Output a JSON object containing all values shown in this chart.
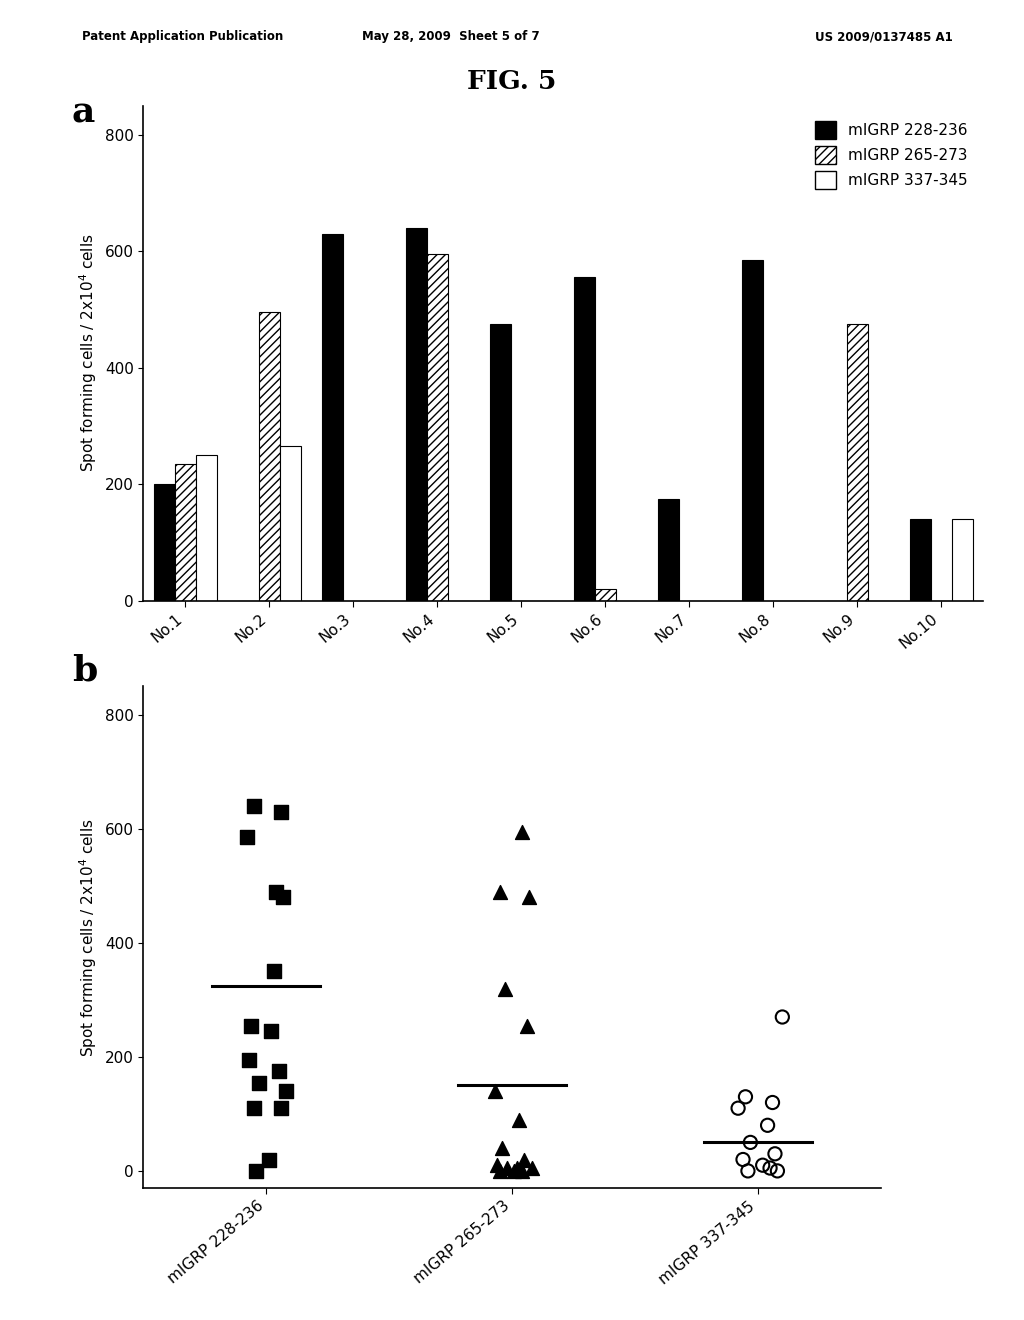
{
  "fig_title": "FIG. 5",
  "patent_header_left": "Patent Application Publication",
  "patent_header_mid": "May 28, 2009  Sheet 5 of 7",
  "patent_header_right": "US 2009/0137485 A1",
  "bar_categories": [
    "No.1",
    "No.2",
    "No.3",
    "No.4",
    "No.5",
    "No.6",
    "No.7",
    "No.8",
    "No.9",
    "No.10"
  ],
  "bar_series": {
    "mIGRP 228-236": [
      200,
      0,
      630,
      640,
      475,
      555,
      175,
      585,
      0,
      140
    ],
    "mIGRP 265-273": [
      235,
      495,
      0,
      595,
      0,
      20,
      0,
      0,
      475,
      0
    ],
    "mIGRP 337-345": [
      250,
      265,
      0,
      0,
      0,
      0,
      0,
      0,
      0,
      140
    ]
  },
  "bar_ylabel": "Spot forming cells / 2x10$^4$ cells",
  "bar_ylim": [
    0,
    850
  ],
  "bar_yticks": [
    0,
    200,
    400,
    600,
    800
  ],
  "bar_width": 0.25,
  "legend_labels": [
    "mIGRP 228-236",
    "mIGRP 265-273",
    "mIGRP 337-345"
  ],
  "scatter_groups": {
    "mIGRP 228-236": [
      640,
      630,
      585,
      490,
      480,
      350,
      255,
      245,
      195,
      175,
      155,
      140,
      110,
      110,
      20,
      0
    ],
    "mIGRP 265-273": [
      595,
      490,
      480,
      320,
      255,
      140,
      90,
      40,
      20,
      10,
      5,
      5,
      5,
      0,
      0,
      0
    ],
    "mIGRP 337-345": [
      270,
      130,
      120,
      110,
      80,
      50,
      30,
      20,
      10,
      5,
      0,
      0
    ]
  },
  "scatter_medians": {
    "mIGRP 228-236": 325,
    "mIGRP 265-273": 150,
    "mIGRP 337-345": 50
  },
  "scatter_ylabel": "Spot forming cells / 2x10$^4$ cells",
  "scatter_ylim": [
    -30,
    850
  ],
  "scatter_yticks": [
    0,
    200,
    400,
    600,
    800
  ],
  "scatter_xlabels": [
    "mIGRP 228-236",
    "mIGRP 265-273",
    "mIGRP 337-345"
  ],
  "background_color": "#ffffff"
}
